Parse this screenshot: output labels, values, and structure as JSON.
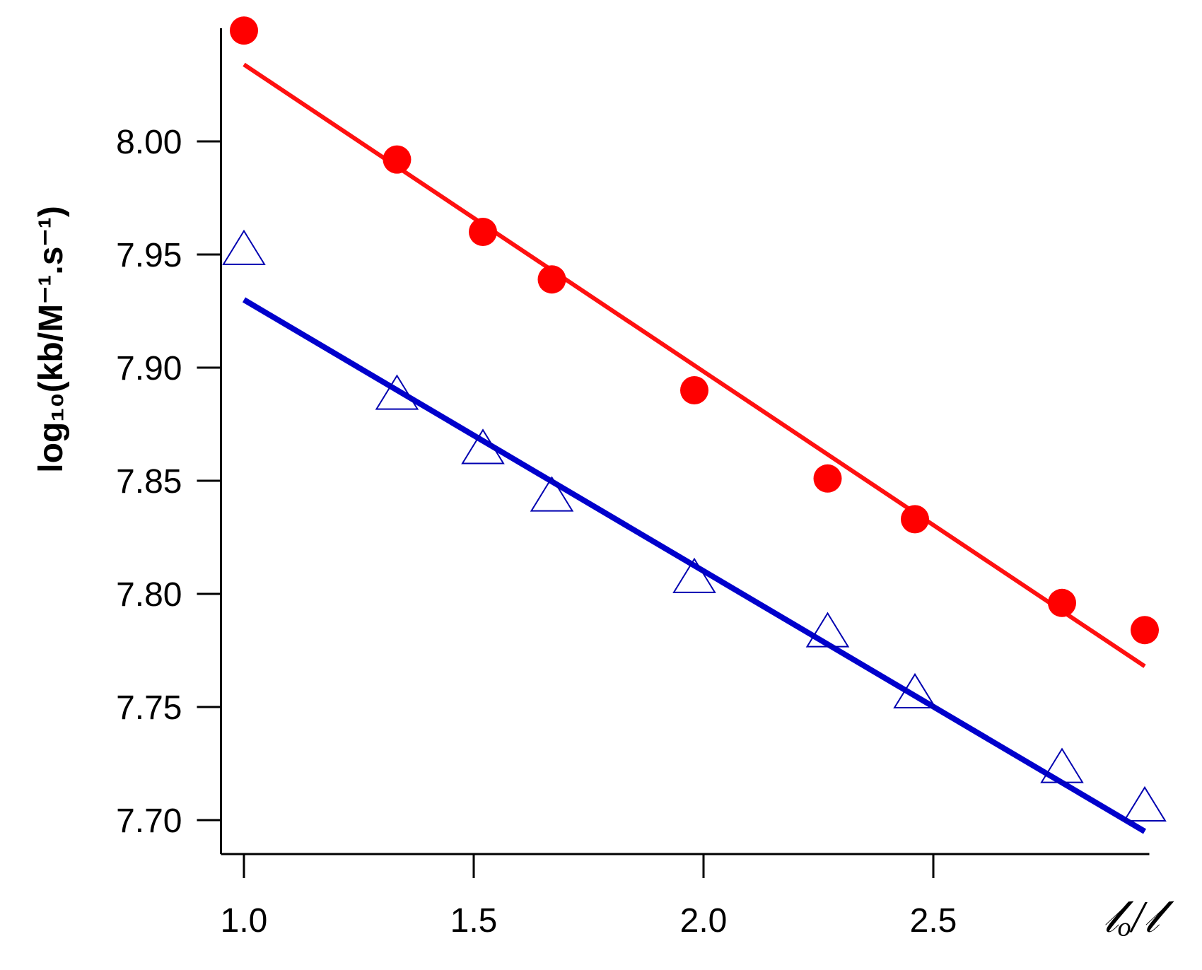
{
  "chart_data": {
    "type": "scatter",
    "xlabel": "𝓁ₒ/𝓁",
    "ylabel": "log₁₀(kb/M⁻¹.s⁻¹)",
    "xlim": [
      0.95,
      2.97
    ],
    "ylim": [
      7.685,
      8.05
    ],
    "xticks": [
      1.0,
      1.5,
      2.0,
      2.5
    ],
    "xtick_labels": [
      "1.0",
      "1.5",
      "2.0",
      "2.5"
    ],
    "yticks": [
      7.7,
      7.75,
      7.8,
      7.85,
      7.9,
      7.95,
      8.0
    ],
    "ytick_labels": [
      "7.70",
      "7.75",
      "7.80",
      "7.85",
      "7.90",
      "7.95",
      "8.00"
    ],
    "grid": false,
    "series": [
      {
        "marker": "filled-circle",
        "color": "#ff0000",
        "points": [
          {
            "x": 1.0,
            "y": 8.049
          },
          {
            "x": 1.333,
            "y": 7.992
          },
          {
            "x": 1.52,
            "y": 7.96
          },
          {
            "x": 1.67,
            "y": 7.939
          },
          {
            "x": 1.98,
            "y": 7.89
          },
          {
            "x": 2.27,
            "y": 7.851
          },
          {
            "x": 2.46,
            "y": 7.833
          },
          {
            "x": 2.78,
            "y": 7.796
          },
          {
            "x": 2.96,
            "y": 7.784
          }
        ],
        "fit": {
          "x": [
            1.0,
            2.96
          ],
          "y": [
            8.034,
            7.768
          ]
        }
      },
      {
        "marker": "open-triangle",
        "color": "#0000b0",
        "points": [
          {
            "x": 1.0,
            "y": 7.952
          },
          {
            "x": 1.333,
            "y": 7.888
          },
          {
            "x": 1.52,
            "y": 7.864
          },
          {
            "x": 1.67,
            "y": 7.843
          },
          {
            "x": 1.98,
            "y": 7.807
          },
          {
            "x": 2.27,
            "y": 7.783
          },
          {
            "x": 2.46,
            "y": 7.756
          },
          {
            "x": 2.78,
            "y": 7.723
          },
          {
            "x": 2.96,
            "y": 7.706
          }
        ],
        "fit": {
          "x": [
            1.0,
            2.96
          ],
          "y": [
            7.93,
            7.695
          ]
        }
      }
    ],
    "fit_colors": [
      "#ff1010",
      "#0000cc"
    ]
  }
}
